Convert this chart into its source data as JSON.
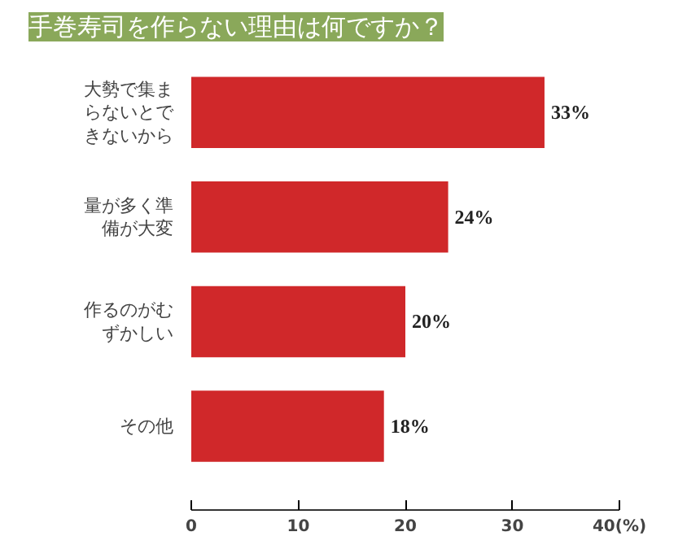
{
  "chart_data": {
    "type": "bar",
    "orientation": "horizontal",
    "title": "手巻寿司を作らない理由は何ですか？",
    "categories": [
      "大勢で集まらないとできないから",
      "量が多く準備が大変",
      "作るのがむずかしい",
      "その他"
    ],
    "values": [
      33,
      24,
      20,
      18
    ],
    "color": "#d0282a",
    "value_labels": [
      "33%",
      "24%",
      "20%",
      "18%"
    ],
    "xlim": [
      0,
      40
    ],
    "xticks": [
      0,
      10,
      20,
      30,
      {
        "value": 40,
        "label": "40(%)"
      }
    ],
    "grid": false
  }
}
